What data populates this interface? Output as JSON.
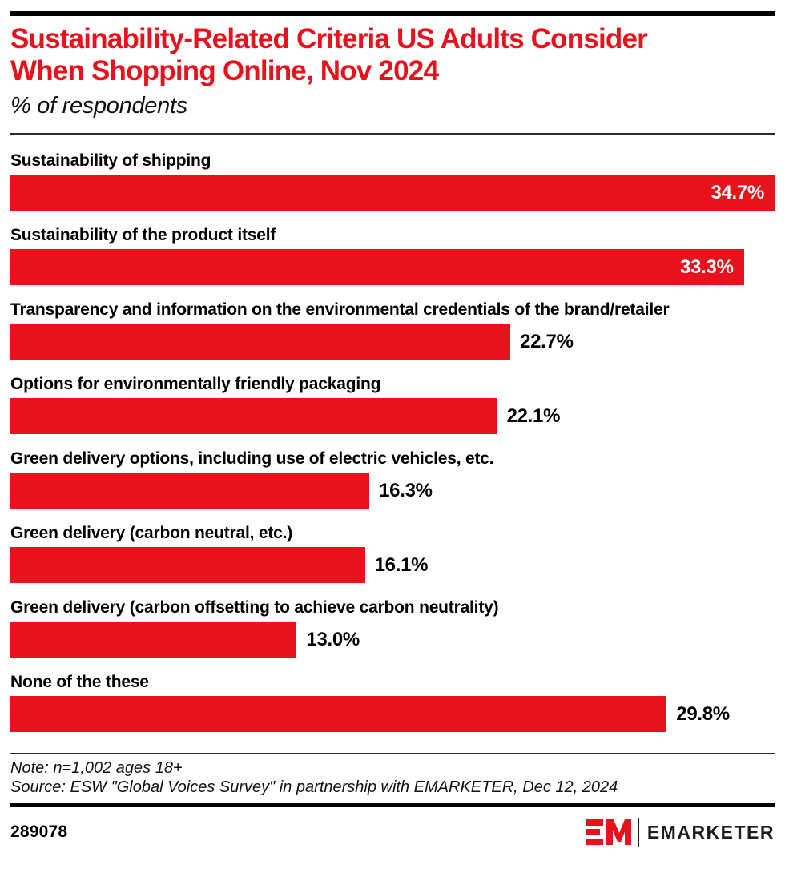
{
  "header": {
    "title_line1": "Sustainability-Related Criteria US Adults Consider",
    "title_line2": "When Shopping Online, Nov 2024",
    "subtitle": "% of respondents"
  },
  "chart_data": {
    "type": "bar",
    "orientation": "horizontal",
    "unit": "%",
    "xlim": [
      0,
      34.7
    ],
    "grid": false,
    "legend": false,
    "bar_color": "#e8121c",
    "categories": [
      "Sustainability of shipping",
      "Sustainability of the product itself",
      "Transparency and information on the environmental credentials of the brand/retailer",
      "Options for environmentally friendly packaging",
      "Green delivery options, including use of electric vehicles, etc.",
      "Green delivery (carbon neutral, etc.)",
      "Green delivery (carbon offsetting to achieve carbon neutrality)",
      "None of the these"
    ],
    "values": [
      34.7,
      33.3,
      22.7,
      22.1,
      16.3,
      16.1,
      13.0,
      29.8
    ],
    "value_labels": [
      "34.7%",
      "33.3%",
      "22.7%",
      "22.1%",
      "16.3%",
      "16.1%",
      "13.0%",
      "29.8%"
    ],
    "value_label_position": [
      "inside",
      "inside",
      "outside",
      "outside",
      "outside",
      "outside",
      "outside",
      "outside"
    ],
    "title": "Sustainability-Related Criteria US Adults Consider When Shopping Online, Nov 2024",
    "xlabel": "",
    "ylabel": ""
  },
  "footer": {
    "note": "Note: n=1,002 ages 18+",
    "source": "Source: ESW \"Global Voices Survey\" in partnership with EMARKETER, Dec 12, 2024",
    "chart_id": "289078",
    "brand_name": "EMARKETER"
  },
  "colors": {
    "accent": "#e8121c",
    "rule": "#000000",
    "divider": "#2b2b2b"
  }
}
